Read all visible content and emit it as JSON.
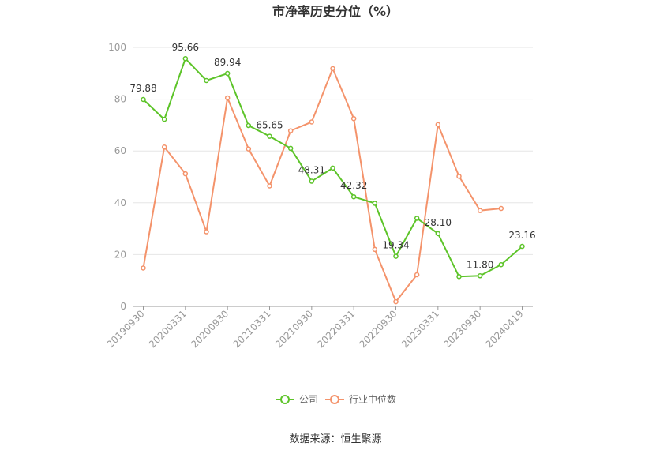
{
  "chart_data": {
    "type": "line",
    "title": "市净率历史分位（%）",
    "x_tick_labels": [
      "20190930",
      "20200331",
      "20200930",
      "20210331",
      "20210930",
      "20220331",
      "20220930",
      "20230331",
      "20230930",
      "20240419"
    ],
    "ylim": [
      0,
      100
    ],
    "y_ticks": [
      0,
      20,
      40,
      60,
      80,
      100
    ],
    "grid": true,
    "legend_position": "bottom-center",
    "series": [
      {
        "name": "公司",
        "color": "#5dc429",
        "values": [
          79.88,
          72.2,
          95.66,
          87.2,
          89.94,
          69.8,
          65.65,
          61.0,
          48.31,
          53.4,
          42.32,
          39.8,
          19.34,
          34.0,
          28.1,
          11.5,
          11.8,
          16.1,
          23.16
        ],
        "labels": [
          "79.88",
          "",
          "95.66",
          "",
          "89.94",
          "",
          "65.65",
          "",
          "48.31",
          "",
          "42.32",
          "",
          "19.34",
          "",
          "28.10",
          "",
          "11.80",
          "",
          "23.16"
        ]
      },
      {
        "name": "行业中位数",
        "color": "#f4936b",
        "values": [
          14.8,
          61.5,
          51.2,
          28.8,
          80.5,
          60.8,
          46.5,
          67.8,
          71.2,
          91.8,
          72.5,
          22.0,
          1.8,
          12.2,
          70.2,
          50.2,
          37.0,
          37.8,
          null
        ]
      }
    ]
  },
  "source_label": "数据来源：恒生聚源"
}
